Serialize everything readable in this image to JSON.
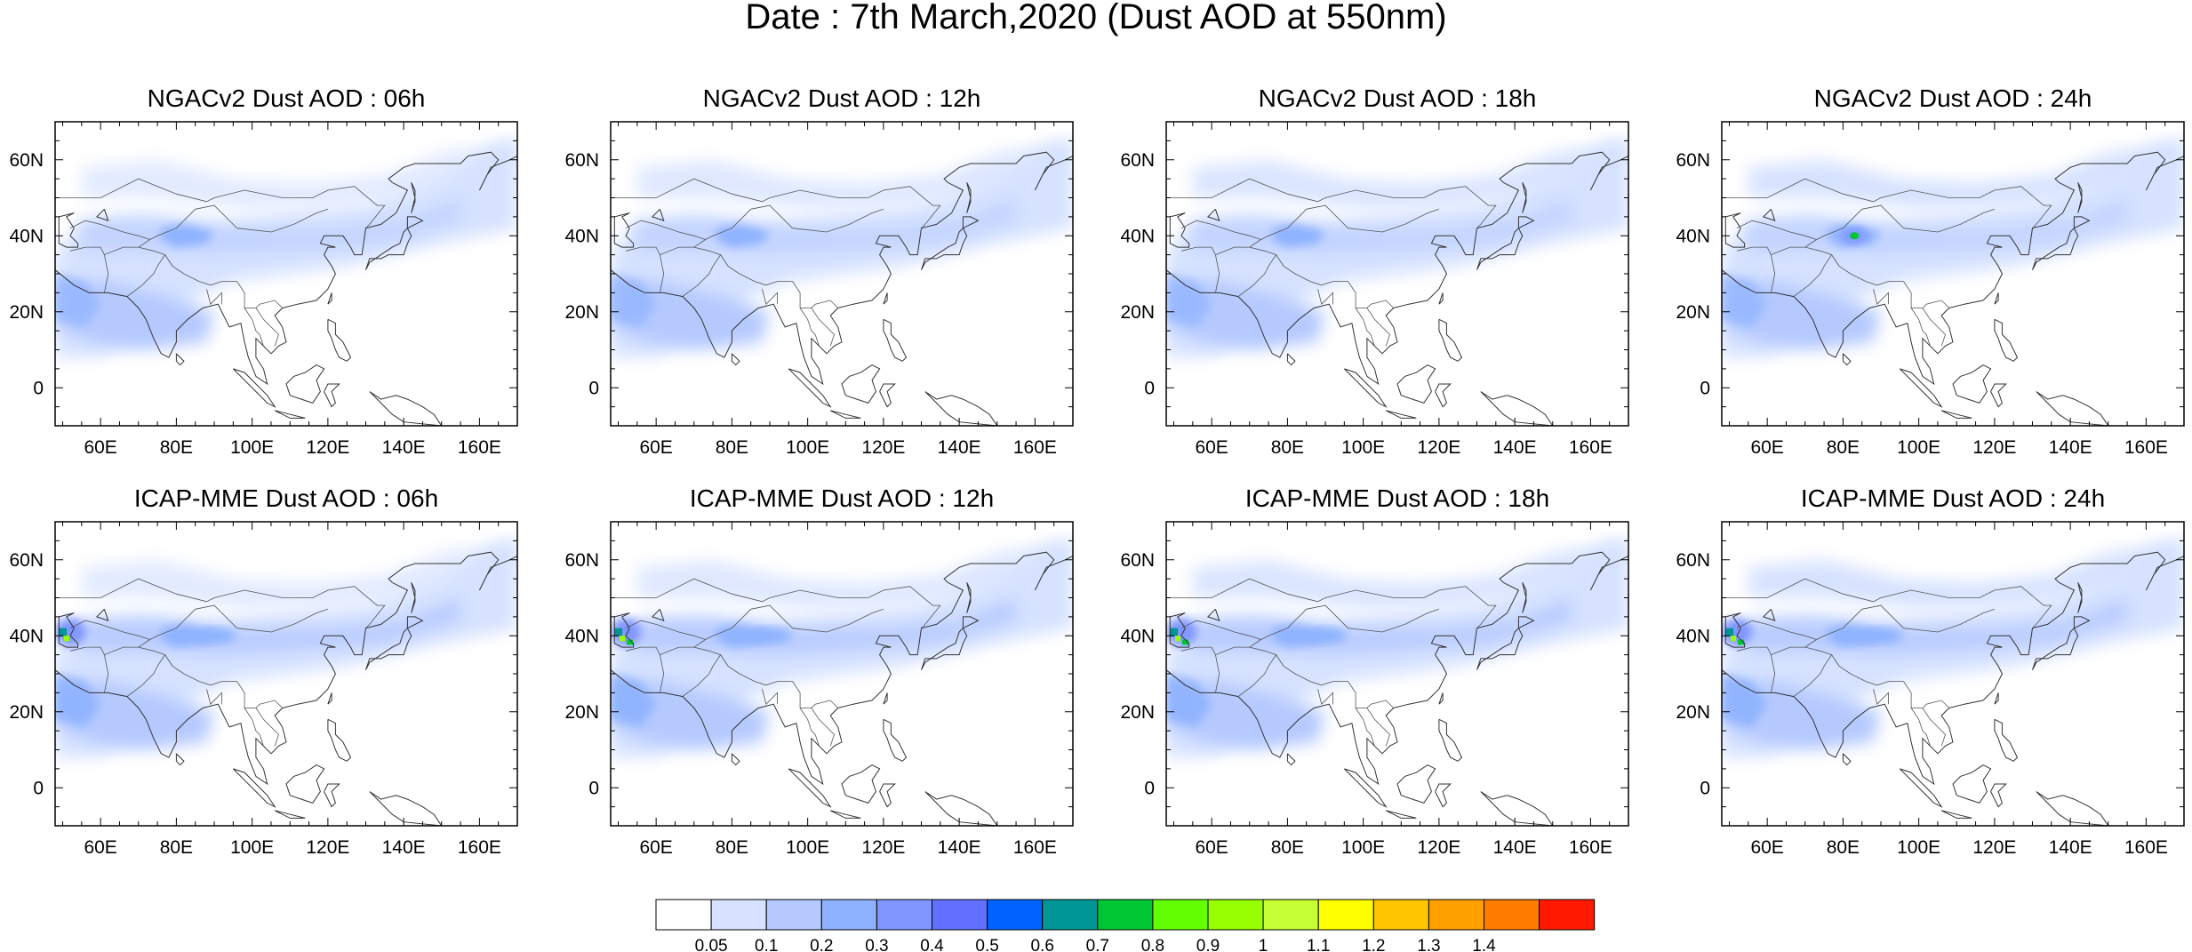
{
  "figure": {
    "title": "Date : 7th March,2020 (Dust AOD at 550nm)"
  },
  "axes": {
    "xticks": [
      "60E",
      "80E",
      "100E",
      "120E",
      "140E",
      "160E"
    ],
    "xvalues": [
      60,
      80,
      100,
      120,
      140,
      160
    ],
    "yticks": [
      "60N",
      "40N",
      "20N",
      "0"
    ],
    "yvalues": [
      60,
      40,
      20,
      0
    ],
    "lon_range": [
      48,
      170
    ],
    "lat_range": [
      -10,
      70
    ]
  },
  "panels": [
    {
      "title": "NGACv2 Dust AOD : 06h",
      "model": "NGACv2",
      "hour": "06h"
    },
    {
      "title": "NGACv2 Dust AOD : 12h",
      "model": "NGACv2",
      "hour": "12h"
    },
    {
      "title": "NGACv2 Dust AOD : 18h",
      "model": "NGACv2",
      "hour": "18h"
    },
    {
      "title": "NGACv2 Dust AOD : 24h",
      "model": "NGACv2",
      "hour": "24h"
    },
    {
      "title": "ICAP-MME Dust AOD : 06h",
      "model": "ICAP-MME",
      "hour": "06h"
    },
    {
      "title": "ICAP-MME Dust AOD : 12h",
      "model": "ICAP-MME",
      "hour": "12h"
    },
    {
      "title": "ICAP-MME Dust AOD : 18h",
      "model": "ICAP-MME",
      "hour": "18h"
    },
    {
      "title": "ICAP-MME Dust AOD : 24h",
      "model": "ICAP-MME",
      "hour": "24h"
    }
  ],
  "colorbar": {
    "labels": [
      "0.05",
      "0.1",
      "0.2",
      "0.3",
      "0.4",
      "0.5",
      "0.6",
      "0.7",
      "0.8",
      "0.9",
      "1",
      "1.1",
      "1.2",
      "1.3",
      "1.4"
    ],
    "colors": [
      "#ffffff",
      "#d6e2ff",
      "#b5c9ff",
      "#8eb2ff",
      "#7f96ff",
      "#6370ff",
      "#0063ff",
      "#009696",
      "#00c633",
      "#63ff00",
      "#96ff00",
      "#c6ff33",
      "#ffff00",
      "#ffc600",
      "#ffa000",
      "#ff7c00",
      "#ff1900"
    ]
  }
}
